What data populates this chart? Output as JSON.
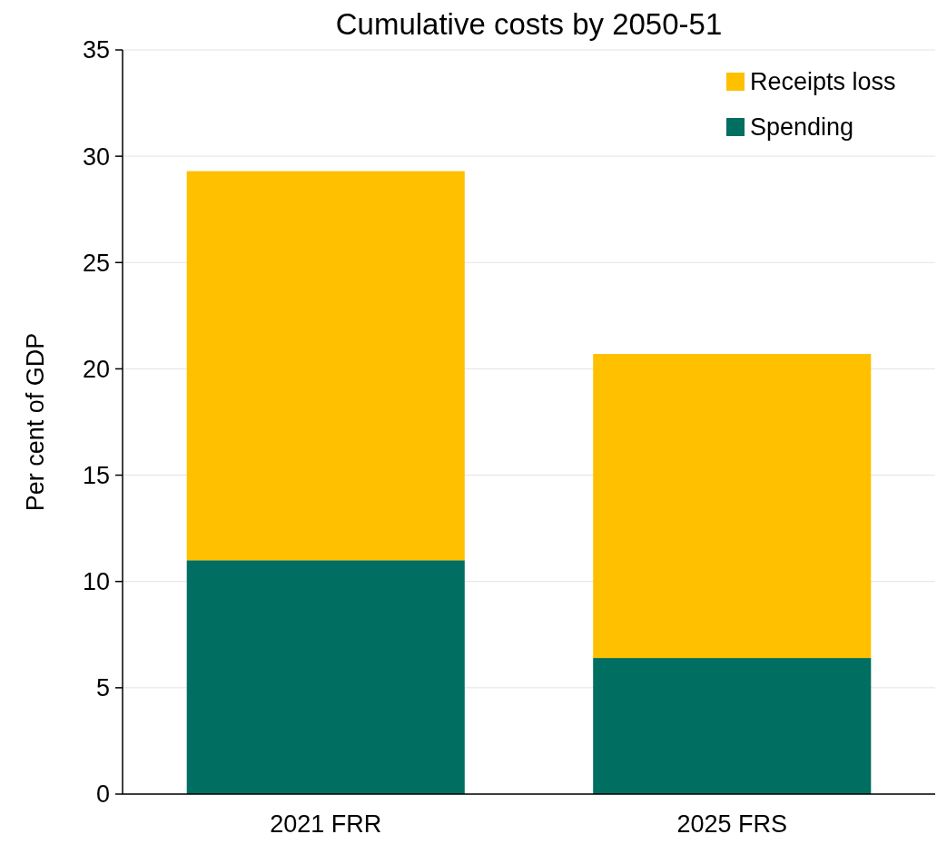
{
  "chart_data": {
    "type": "bar",
    "title": "Cumulative costs by 2050-51",
    "ylabel": "Per cent of GDP",
    "categories": [
      "2021 FRR",
      "2025 FRS"
    ],
    "stacked": true,
    "series": [
      {
        "name": "Spending",
        "color": "#006e60",
        "values": [
          11.0,
          6.4
        ]
      },
      {
        "name": "Receipts loss",
        "color": "#ffc000",
        "values": [
          18.3,
          14.3
        ]
      }
    ],
    "ylim": [
      0,
      35
    ],
    "yticks": [
      0,
      5,
      10,
      15,
      20,
      25,
      30,
      35
    ],
    "grid": "y",
    "legend": "top right"
  }
}
